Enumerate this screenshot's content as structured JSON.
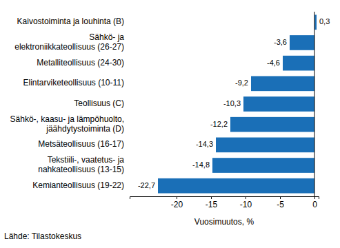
{
  "chart_data": {
    "type": "bar",
    "orientation": "horizontal",
    "categories": [
      "Kaivostoiminta ja louhinta (B)",
      "Sähkö- ja\nelektroniikkateollisuus (26-27)",
      "Metalliteollisuus (24-30)",
      "Elintarviketeollisuus (10-11)",
      "Teollisuus (C)",
      "Sähkö-, kaasu- ja lämpöhuolto,\njäähdytystoiminta (D)",
      "Metsäteollisuus (16-17)",
      "Tekstiili-, vaatetus- ja\nnahkateollisuus (13-15)",
      "Kemianteollisuus (19-22)"
    ],
    "values": [
      0.3,
      -3.6,
      -4.6,
      -9.2,
      -10.3,
      -12.2,
      -14.3,
      -14.8,
      -22.7
    ],
    "value_labels": [
      "0,3",
      "-3,6",
      "-4,6",
      "-9,2",
      "-10,3",
      "-12,2",
      "-14,3",
      "-14,8",
      "-22,7"
    ],
    "data_labels": true,
    "color": "#1a6fb7",
    "xlabel": "Vuosimuutos, %",
    "xlim": [
      -26.8,
      0.6
    ],
    "xticks": [
      -20,
      -15,
      -10,
      -5,
      0
    ],
    "grid": false,
    "source": "Lähde: Tilastokeskus"
  }
}
